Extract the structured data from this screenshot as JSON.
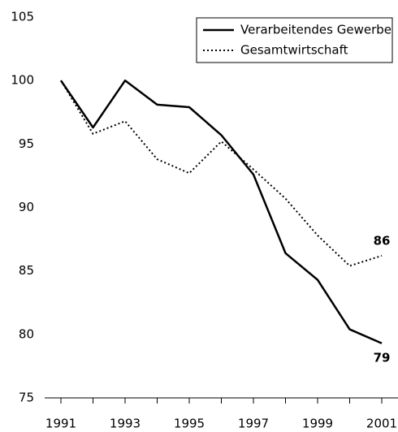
{
  "chart_data": {
    "type": "line",
    "x": [
      1991,
      1992,
      1993,
      1994,
      1995,
      1996,
      1997,
      1998,
      1999,
      2000,
      2001
    ],
    "series": [
      {
        "name": "Verarbeitendes Gewerbe",
        "color": "#000000",
        "dash": "solid",
        "values": [
          100,
          96.3,
          100,
          98.1,
          97.9,
          95.7,
          92.6,
          86.4,
          84.3,
          80.4,
          79.3
        ],
        "value_labels": [
          null,
          null,
          null,
          null,
          null,
          null,
          null,
          null,
          null,
          null,
          "79"
        ]
      },
      {
        "name": "Gesamtwirtschaft",
        "color": "#000000",
        "dash": "dotted",
        "values": [
          100,
          95.8,
          96.8,
          93.8,
          92.7,
          95.2,
          93.0,
          90.7,
          87.8,
          85.4,
          86.2
        ],
        "value_labels": [
          null,
          null,
          null,
          null,
          null,
          null,
          null,
          null,
          null,
          null,
          "86"
        ]
      }
    ],
    "xlim": [
      1991,
      2001
    ],
    "xticks": [
      1991,
      {
        "value": 1992,
        "label": null
      },
      1993,
      {
        "value": 1994,
        "label": null
      },
      1995,
      {
        "value": 1996,
        "label": null
      },
      1997,
      {
        "value": 1998,
        "label": null
      },
      1999,
      {
        "value": 2000,
        "label": null
      },
      2001
    ],
    "ylim": [
      75,
      105
    ],
    "yticks": [
      75,
      80,
      85,
      90,
      95,
      100,
      105
    ],
    "grid": false,
    "legend": "top-right"
  }
}
